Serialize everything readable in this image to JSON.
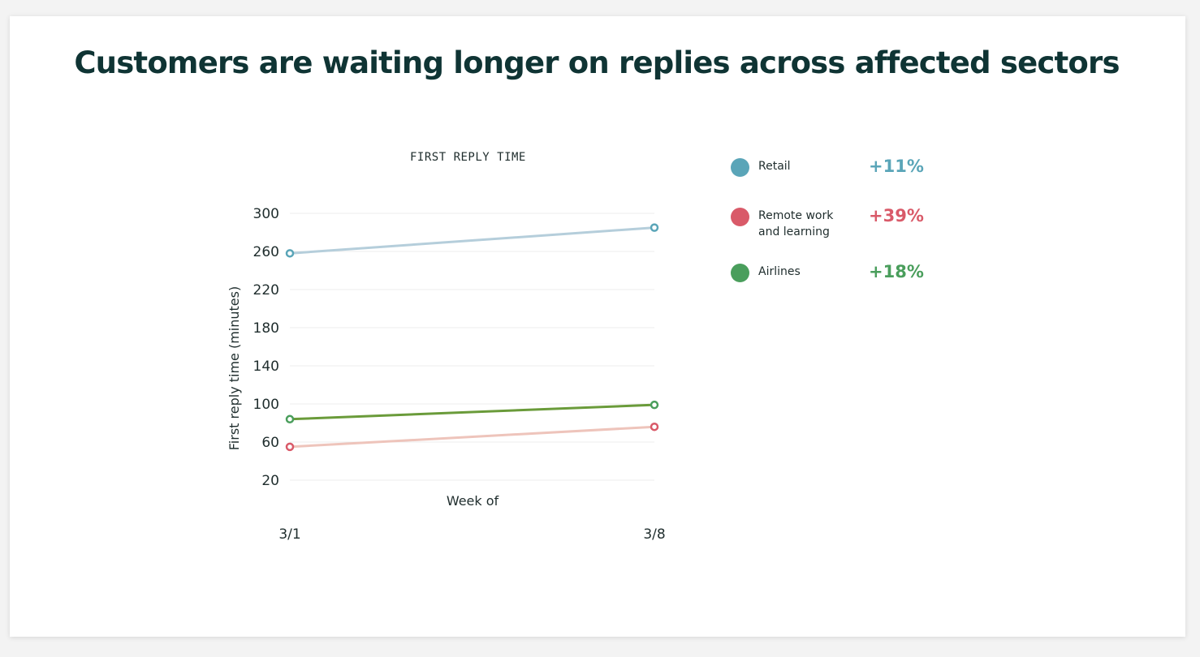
{
  "title": "Customers are waiting longer on replies across affected sectors",
  "chart_data": {
    "type": "line",
    "title": "FIRST REPLY TIME",
    "xlabel": "Week of",
    "ylabel": "First reply time (minutes)",
    "categories": [
      "3/1",
      "3/8"
    ],
    "yticks": [
      300,
      260,
      220,
      180,
      140,
      100,
      60,
      20
    ],
    "ylim": [
      20,
      300
    ],
    "series": [
      {
        "name": "Retail",
        "values": [
          258,
          285
        ],
        "line_color": "#b5cedb",
        "marker_color": "#5aa5b8",
        "change": "+11%",
        "legend_color": "#5aa5b8"
      },
      {
        "name": "Remote work and learning",
        "values": [
          55,
          76
        ],
        "line_color": "#eec4bb",
        "marker_color": "#d95a69",
        "change": "+39%",
        "legend_color": "#d95a69"
      },
      {
        "name": "Airlines",
        "values": [
          84,
          99
        ],
        "line_color": "#6a9b3a",
        "marker_color": "#4a9e5c",
        "change": "+18%",
        "legend_color": "#4a9e5c"
      }
    ]
  },
  "legend": [
    {
      "label": "Retail",
      "change": "+11%",
      "color": "#5aa5b8"
    },
    {
      "label": "Remote work and learning",
      "change": "+39%",
      "color": "#d95a69"
    },
    {
      "label": "Airlines",
      "change": "+18%",
      "color": "#4a9e5c"
    }
  ]
}
